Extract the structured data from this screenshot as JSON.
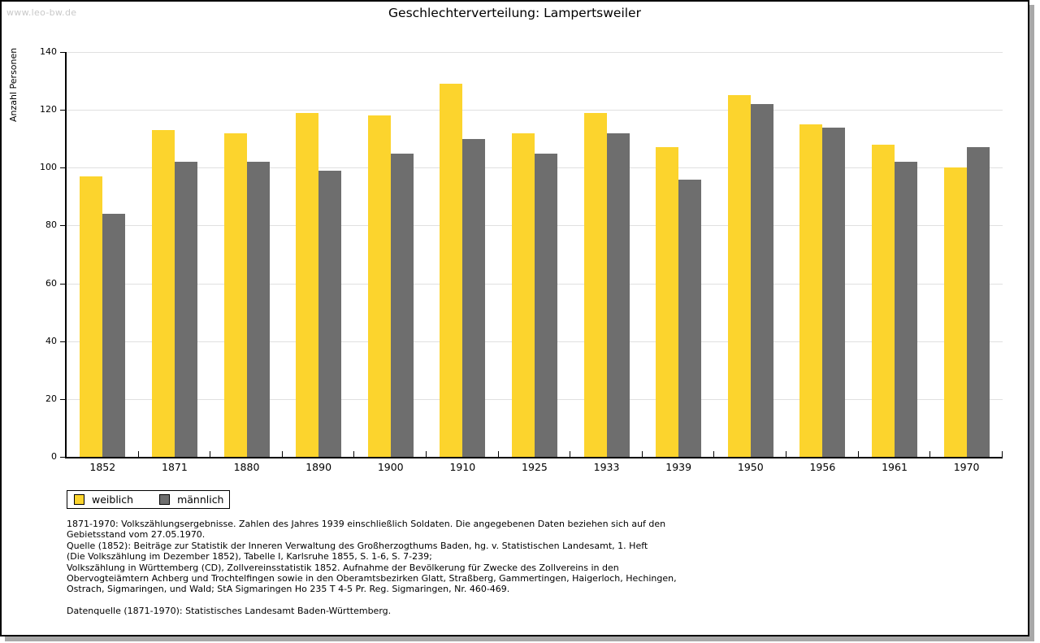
{
  "watermark": "www.leo-bw.de",
  "header": {
    "title": "Geschlechterverteilung: Lampertsweiler"
  },
  "chart_data": {
    "type": "bar",
    "title": "Geschlechterverteilung: Lampertsweiler",
    "xlabel": "",
    "ylabel": "Anzahl Personen",
    "categories": [
      "1852",
      "1871",
      "1880",
      "1890",
      "1900",
      "1910",
      "1925",
      "1933",
      "1939",
      "1950",
      "1956",
      "1961",
      "1970"
    ],
    "series": [
      {
        "name": "weiblich",
        "color": "#fcd42d",
        "values": [
          97,
          113,
          112,
          119,
          118,
          129,
          112,
          119,
          107,
          125,
          115,
          108,
          100
        ]
      },
      {
        "name": "männlich",
        "color": "#6e6e6e",
        "values": [
          84,
          102,
          102,
          99,
          105,
          110,
          105,
          112,
          96,
          122,
          114,
          102,
          107
        ]
      }
    ],
    "ylim": [
      0,
      140
    ],
    "ytick_step": 20,
    "grid": true,
    "gridline_color": "#e0e0e0",
    "legend_position": "bottom-left"
  },
  "legend": {
    "items": [
      {
        "label": "weiblich",
        "color": "#fcd42d"
      },
      {
        "label": "männlich",
        "color": "#6e6e6e"
      }
    ]
  },
  "footnotes": {
    "lines": [
      "1871-1970: Volkszählungsergebnisse. Zahlen des Jahres 1939 einschließlich Soldaten. Die angegebenen Daten beziehen sich auf den",
      "Gebietsstand vom 27.05.1970.",
      "Quelle (1852): Beiträge zur Statistik der Inneren Verwaltung des Großherzogthums Baden, hg. v. Statistischen Landesamt, 1. Heft",
      "(Die Volkszählung im Dezember 1852), Tabelle I, Karlsruhe 1855, S. 1-6, S. 7-239;",
      "Volkszählung in Württemberg (CD), Zollvereinsstatistik 1852. Aufnahme der Bevölkerung für Zwecke des Zollvereins in den",
      "Obervogteiämtern Achberg und Trochtelfingen sowie in den Oberamtsbezirken Glatt, Straßberg, Gammertingen, Haigerloch, Hechingen,",
      "Ostrach, Sigmaringen, und Wald; StA Sigmaringen Ho 235 T 4-5 Pr. Reg. Sigmaringen, Nr. 460-469."
    ],
    "datasource": "Datenquelle (1871-1970): Statistisches Landesamt Baden-Württemberg."
  }
}
